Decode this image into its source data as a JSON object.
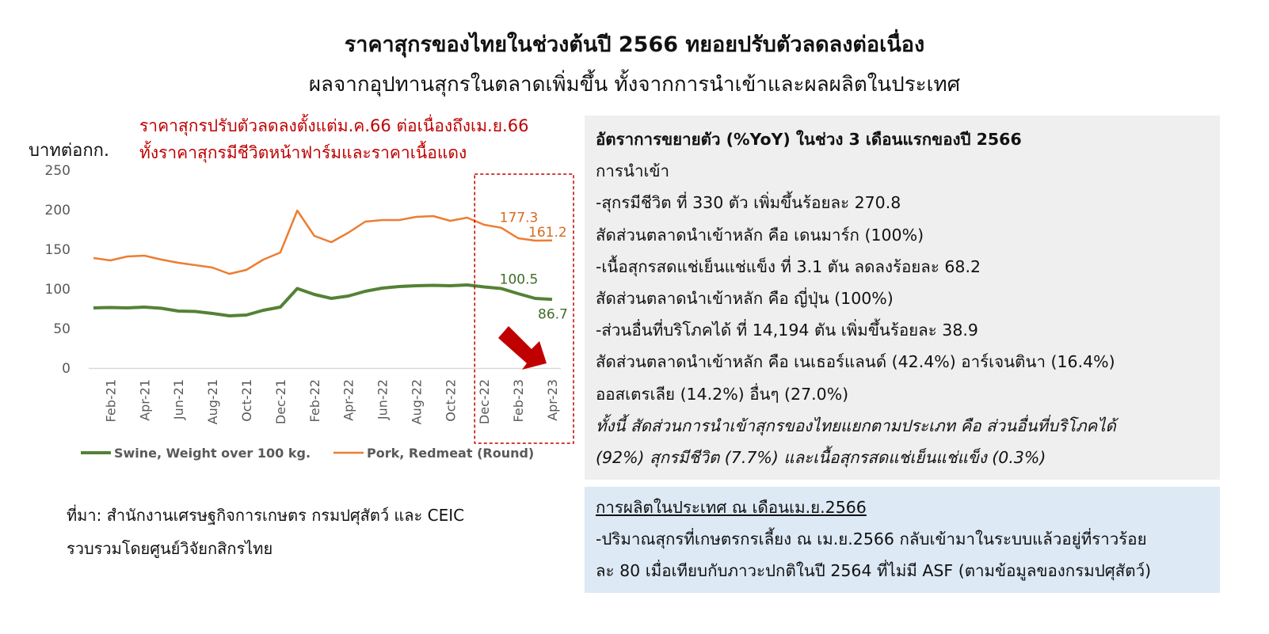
{
  "header": {
    "title": "ราคาสุกรของไทยในช่วงต้นปี 2566 ทยอยปรับตัวลดลงต่อเนื่อง",
    "subtitle": "ผลจากอุปทานสุกรในตลาดเพิ่มขึ้น ทั้งจากการนำเข้าและผลผลิตในประเทศ"
  },
  "chart_annotation": {
    "line1": "ราคาสุกรปรับตัวลดลงตั้งแต่ม.ค.66 ต่อเนื่องถึงเม.ย.66",
    "line2": "ทั้งราคาสุกรมีชีวิตหน้าฟาร์มและราคาเนื้อแดง"
  },
  "chart_data": {
    "type": "line",
    "ylabel": "บาทต่อกก.",
    "ylim": [
      0,
      250
    ],
    "yticks": [
      "250",
      "200",
      "150",
      "100",
      "50",
      "0"
    ],
    "x_tick_labels": [
      "Feb-21",
      "Apr-21",
      "Jun-21",
      "Aug-21",
      "Oct-21",
      "Dec-21",
      "Feb-22",
      "Apr-22",
      "Jun-22",
      "Aug-22",
      "Oct-22",
      "Dec-22",
      "Feb-23",
      "Apr-23"
    ],
    "x": [
      "Jan-21",
      "Feb-21",
      "Mar-21",
      "Apr-21",
      "May-21",
      "Jun-21",
      "Jul-21",
      "Aug-21",
      "Sep-21",
      "Oct-21",
      "Nov-21",
      "Dec-21",
      "Jan-22",
      "Feb-22",
      "Mar-22",
      "Apr-22",
      "May-22",
      "Jun-22",
      "Jul-22",
      "Aug-22",
      "Sep-22",
      "Oct-22",
      "Nov-22",
      "Dec-22",
      "Jan-23",
      "Feb-23",
      "Mar-23",
      "Apr-23"
    ],
    "legend_position": "bottom",
    "grid": false,
    "series": [
      {
        "name": "Swine, Weight over 100 kg.",
        "color": "#548235",
        "values": [
          76,
          76.5,
          76,
          77,
          75.5,
          72,
          71.5,
          69,
          66,
          67,
          73,
          77,
          100.5,
          93,
          88,
          91,
          97,
          101,
          103,
          104,
          104.5,
          104,
          105,
          102.5,
          100.5,
          94,
          88,
          86.7
        ]
      },
      {
        "name": "Pork, Redmeat (Round)",
        "color": "#ed7d31",
        "values": [
          139,
          136,
          141,
          142,
          137,
          133,
          130,
          127,
          119,
          124,
          137,
          146,
          199,
          167,
          159,
          171,
          185,
          187,
          187,
          191,
          192,
          186,
          190,
          181,
          177.3,
          164,
          161,
          161.2
        ]
      }
    ],
    "data_labels": [
      {
        "series": 1,
        "index": 24,
        "text": "177.3"
      },
      {
        "series": 1,
        "index": 27,
        "text": "161.2"
      },
      {
        "series": 0,
        "index": 24,
        "text": "100.5"
      },
      {
        "series": 0,
        "index": 27,
        "text": "86.7"
      }
    ],
    "highlight_color": "#c00000"
  },
  "source": {
    "line1": "ที่มา: สำนักงานเศรษฐกิจการเกษตร กรมปศุสัตว์ และ CEIC",
    "line2": "รวบรวมโดยศูนย์วิจัยกสิกรไทย"
  },
  "panel_import": {
    "heading": "อัตราการขยายตัว (%YoY) ในช่วง 3 เดือนแรกของปี 2566",
    "lines": [
      "การนำเข้า",
      "-สุกรมีชีวิต ที่ 330 ตัว เพิ่มขึ้นร้อยละ 270.8",
      "สัดส่วนตลาดนำเข้าหลัก คือ เดนมาร์ก (100%)",
      "-เนื้อสุกรสดแช่เย็นแช่แข็ง ที่ 3.1 ตัน ลดลงร้อยละ 68.2",
      "สัดส่วนตลาดนำเข้าหลัก คือ ญี่ปุ่น (100%)",
      "-ส่วนอื่นที่บริโภคได้ ที่ 14,194 ตัน เพิ่มขึ้นร้อยละ 38.9",
      "สัดส่วนตลาดนำเข้าหลัก คือ เนเธอร์แลนด์ (42.4%) อาร์เจนตินา (16.4%)",
      "ออสเตรเลีย (14.2%) อื่นๆ (27.0%)"
    ],
    "italic_lines": [
      "ทั้งนี้ สัดส่วนการนำเข้าสุกรของไทยแยกตามประเภท คือ ส่วนอื่นที่บริโภคได้",
      "(92%) สุกรมีชีวิต (7.7%) และเนื้อสุกรสดแช่เย็นแช่แข็ง (0.3%)"
    ],
    "background": "#efefef"
  },
  "panel_production": {
    "heading": "การผลิตในประเทศ ณ เดือนเม.ย.2566",
    "lines": [
      "-ปริมาณสุกรที่เกษตรกรเลี้ยง ณ เม.ย.2566 กลับเข้ามาในระบบแล้วอยู่ที่ราวร้อย",
      "ละ 80 เมื่อเทียบกับภาวะปกติในปี 2564 ที่ไม่มี ASF (ตามข้อมูลของกรมปศุสัตว์)"
    ],
    "background": "#dde9f5"
  }
}
